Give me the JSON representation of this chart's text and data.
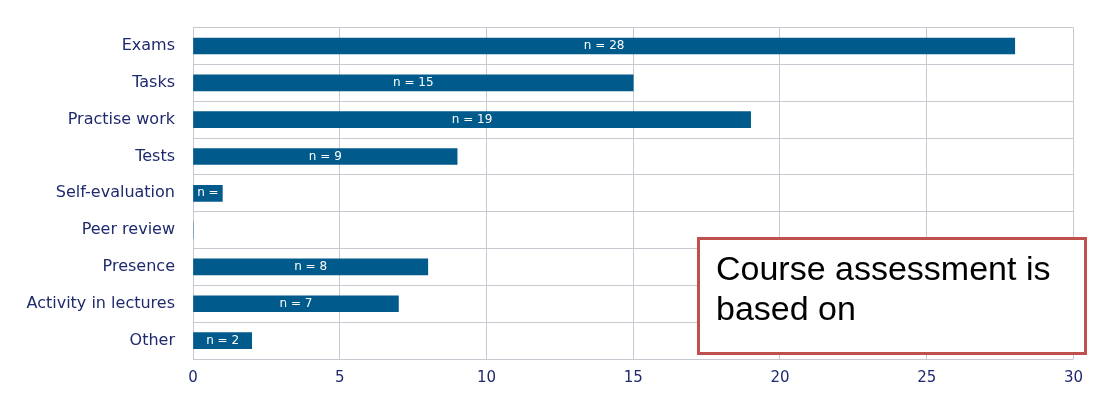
{
  "chart_data": {
    "type": "bar",
    "orientation": "horizontal",
    "title": "Course assessment is based on",
    "categories": [
      "Exams",
      "Tasks",
      "Practise work",
      "Tests",
      "Self-evaluation",
      "Peer review",
      "Presence",
      "Activity in lectures",
      "Other"
    ],
    "values": [
      28,
      15,
      19,
      9,
      1,
      0,
      8,
      7,
      2
    ],
    "value_labels": [
      "n = 28",
      "n = 15",
      "n = 19",
      "n = 9",
      "n =",
      null,
      "n = 8",
      "n = 7",
      "n = 2"
    ],
    "color": "#005a8c",
    "xlim": [
      0,
      30
    ],
    "xticks": [
      0,
      5,
      10,
      15,
      20,
      25,
      30
    ],
    "grid": true
  }
}
